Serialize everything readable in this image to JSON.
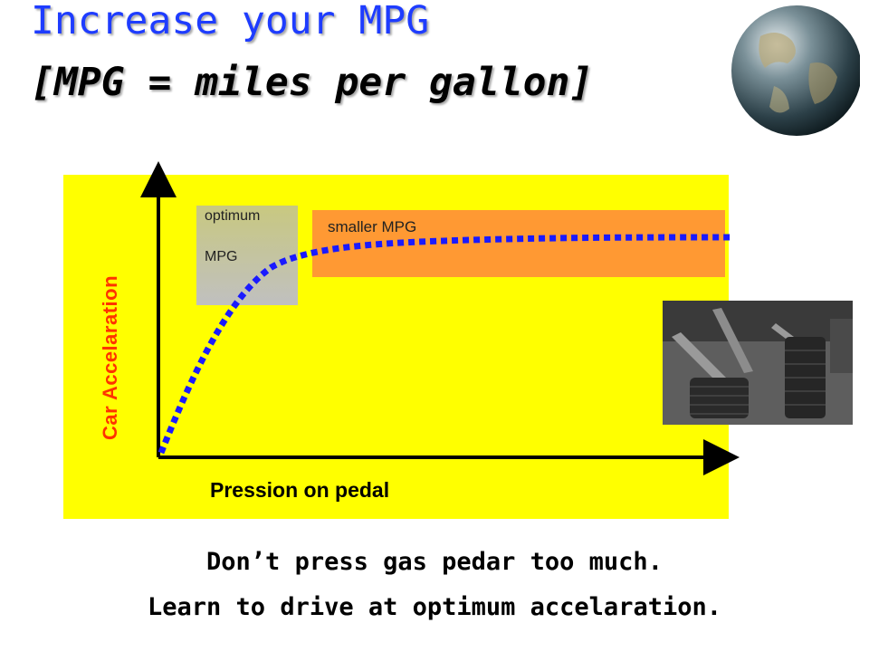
{
  "title": {
    "line1": "Increase your MPG",
    "line2": "[MPG = miles per gallon]"
  },
  "diagram": {
    "optimum_label_line1": "optimum",
    "optimum_label_line2": "MPG",
    "smaller_label": "smaller MPG",
    "y_axis_label": "Car Accelaration",
    "x_axis_label": "Pression on pedal",
    "curve": "rising dotted curve that levels off",
    "colors": {
      "panel": "#ffff00",
      "optimum_zone": "#c0c0a0",
      "smaller_zone": "#ff9933",
      "curve": "#1a1aff",
      "y_label": "#ff3300",
      "title_line1": "#1e3cff"
    }
  },
  "caption": {
    "line1": "Don’t press gas pedar too much.",
    "line2": "Learn to drive at optimum accelaration."
  },
  "images": {
    "globe": "globe-image",
    "pedals": "car-pedals-photo"
  }
}
